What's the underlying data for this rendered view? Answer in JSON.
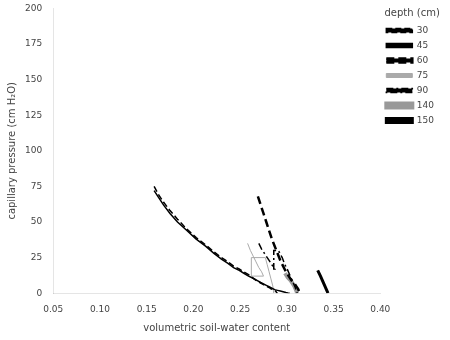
{
  "chart_data": {
    "type": "line",
    "xlabel": "volumetric soil-water content",
    "ylabel": "capillary pressure (cm H₂O)",
    "xlim": [
      0.05,
      0.4
    ],
    "ylim": [
      0,
      200
    ],
    "xticks": [
      {
        "value": 0.05,
        "label": "0.05"
      },
      {
        "value": 0.1,
        "label": "0.10"
      },
      {
        "value": 0.15,
        "label": "0.15"
      },
      {
        "value": 0.2,
        "label": "0.20"
      },
      {
        "value": 0.25,
        "label": "0.25"
      },
      {
        "value": 0.3,
        "label": "0.30"
      },
      {
        "value": 0.35,
        "label": "0.35"
      },
      {
        "value": 0.4,
        "label": "0.40"
      }
    ],
    "yticks": [
      0,
      25,
      50,
      75,
      100,
      125,
      150,
      175,
      200
    ],
    "grid": false,
    "legend": "upper right",
    "legend_title": "depth (cm)",
    "series": [
      {
        "name": "30",
        "color": "#000000",
        "line_style": "dashed",
        "x": [
          0.158,
          0.162,
          0.168,
          0.175,
          0.183,
          0.193,
          0.203,
          0.213,
          0.222,
          0.23,
          0.237,
          0.243,
          0.249,
          0.254,
          0.259,
          0.263,
          0.267,
          0.271,
          0.275,
          0.278,
          0.281,
          0.283,
          0.285,
          0.287,
          0.288,
          0.289,
          0.29
        ],
        "values": [
          75,
          70,
          64,
          58,
          52,
          45,
          39,
          34,
          29,
          25,
          22,
          19,
          17,
          15,
          13,
          11,
          9,
          7.5,
          6,
          5,
          4,
          3,
          2.5,
          2,
          1.5,
          0.5,
          0
        ]
      },
      {
        "name": "45",
        "color": "#000000",
        "line_style": "solid",
        "x": [
          0.158,
          0.162,
          0.168,
          0.175,
          0.183,
          0.193,
          0.203,
          0.213,
          0.222,
          0.23,
          0.237,
          0.243,
          0.249,
          0.254,
          0.259,
          0.264,
          0.268,
          0.272,
          0.275,
          0.278,
          0.281,
          0.284,
          0.287,
          0.29,
          0.293,
          0.296,
          0.299,
          0.301,
          0.303
        ],
        "values": [
          72,
          68,
          62,
          56,
          50,
          44,
          38,
          33,
          28,
          24,
          21,
          18,
          16,
          14,
          12,
          10.5,
          9,
          7.5,
          6.5,
          5.5,
          4.5,
          3.5,
          2.5,
          2.0,
          1.5,
          1.0,
          0.5,
          0.2,
          0
        ]
      },
      {
        "name": "60",
        "color": "#000000",
        "line_style": "bold-dashed",
        "x": [
          0.269,
          0.272,
          0.275,
          0.278,
          0.281,
          0.284,
          0.287,
          0.29,
          0.293,
          0.296,
          0.299,
          0.302,
          0.305,
          0.308,
          0.31,
          0.312,
          0.314
        ],
        "values": [
          68,
          62,
          56,
          50,
          44,
          38,
          33,
          28,
          23,
          19,
          15,
          12,
          9,
          7,
          5,
          3,
          0
        ]
      },
      {
        "name": "75",
        "color": "#aaaaaa",
        "line_style": "thin",
        "x": [
          0.258,
          0.261,
          0.264,
          0.267,
          0.27,
          0.273,
          0.275,
          0.262,
          0.262,
          0.277,
          0.279,
          0.281,
          0.283,
          0.285,
          0.286
        ],
        "values": [
          35,
          30,
          26,
          22,
          18,
          15,
          12,
          12,
          25,
          25,
          20,
          15,
          10,
          5,
          0
        ]
      },
      {
        "name": "90",
        "color": "#000000",
        "line_style": "dashdot",
        "x": [
          0.27,
          0.273,
          0.277,
          0.281,
          0.284,
          0.287,
          0.286,
          0.286,
          0.291,
          0.295,
          0.298,
          0.301,
          0.303,
          0.305,
          0.307,
          0.309,
          0.311
        ],
        "values": [
          35,
          31,
          27,
          23,
          20,
          17,
          17,
          30,
          30,
          25,
          20,
          16,
          13,
          10,
          7,
          4,
          0
        ]
      },
      {
        "name": "140",
        "color": "#999999",
        "line_style": "heavy",
        "x": [
          0.298,
          0.301,
          0.304,
          0.306,
          0.308,
          0.31,
          0.311
        ],
        "values": [
          14,
          11,
          9,
          7,
          5,
          2,
          0
        ]
      },
      {
        "name": "150",
        "color": "#000000",
        "line_style": "bold",
        "x": [
          0.333,
          0.336,
          0.338,
          0.34,
          0.342,
          0.344
        ],
        "values": [
          16,
          12,
          9,
          6,
          3,
          0
        ]
      }
    ]
  }
}
